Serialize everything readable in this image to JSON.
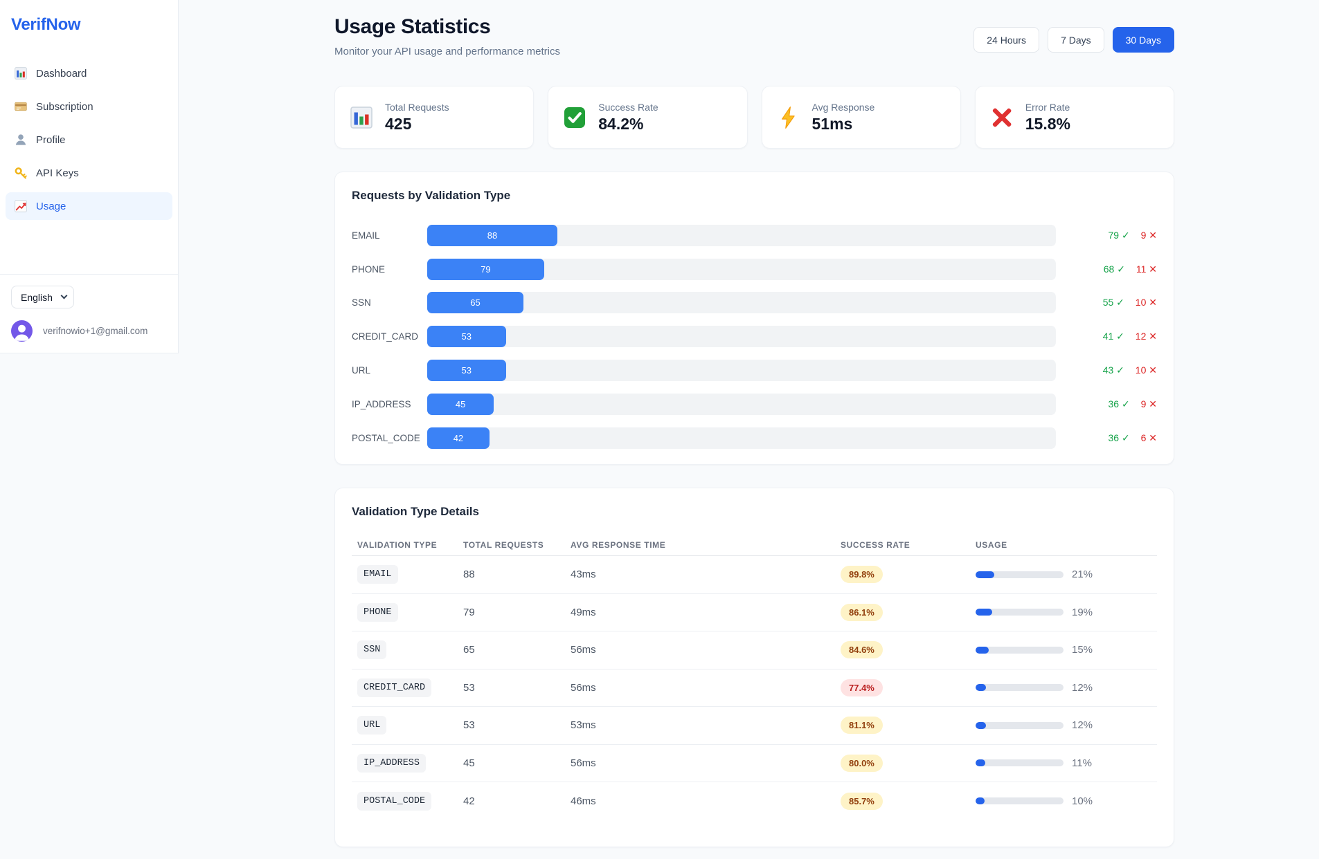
{
  "sidebar": {
    "logo": "VerifNow",
    "nav": [
      {
        "label": "Dashboard",
        "icon": "bar-chart-icon",
        "active": false
      },
      {
        "label": "Subscription",
        "icon": "credit-card-icon",
        "active": false
      },
      {
        "label": "Profile",
        "icon": "person-icon",
        "active": false
      },
      {
        "label": "API Keys",
        "icon": "key-icon",
        "active": false
      },
      {
        "label": "Usage",
        "icon": "chart-up-icon",
        "active": true
      }
    ],
    "language_selector": {
      "value": "English"
    },
    "user": {
      "email": "verifnowio+1@gmail.com"
    }
  },
  "header": {
    "title": "Usage Statistics",
    "subtitle": "Monitor your API usage and performance metrics",
    "range_buttons": [
      {
        "label": "24 Hours",
        "active": false
      },
      {
        "label": "7 Days",
        "active": false
      },
      {
        "label": "30 Days",
        "active": true
      }
    ]
  },
  "stat_cards": [
    {
      "label": "Total Requests",
      "value": "425",
      "icon": "bar-chart-icon"
    },
    {
      "label": "Success Rate",
      "value": "84.2%",
      "icon": "check-icon"
    },
    {
      "label": "Avg Response",
      "value": "51ms",
      "icon": "lightning-icon"
    },
    {
      "label": "Error Rate",
      "value": "15.8%",
      "icon": "cross-icon"
    }
  ],
  "chart_data": {
    "type": "bar",
    "orientation": "horizontal",
    "title": "Requests by Validation Type",
    "categories": [
      "EMAIL",
      "PHONE",
      "SSN",
      "CREDIT_CARD",
      "URL",
      "IP_ADDRESS",
      "POSTAL_CODE"
    ],
    "values": [
      88,
      79,
      65,
      53,
      53,
      45,
      42
    ],
    "series": [
      {
        "name": "success_count",
        "values": [
          79,
          68,
          55,
          41,
          43,
          36,
          36
        ]
      },
      {
        "name": "error_count",
        "values": [
          9,
          11,
          10,
          12,
          10,
          9,
          6
        ]
      }
    ],
    "total_requests": 425,
    "bar_color": "#3b82f6",
    "track_color": "#f1f3f5",
    "rows": [
      {
        "label": "EMAIL",
        "value": 88,
        "success": 79,
        "error": 9,
        "width_pct": 20.7
      },
      {
        "label": "PHONE",
        "value": 79,
        "success": 68,
        "error": 11,
        "width_pct": 18.6
      },
      {
        "label": "SSN",
        "value": 65,
        "success": 55,
        "error": 10,
        "width_pct": 15.3
      },
      {
        "label": "CREDIT_CARD",
        "value": 53,
        "success": 41,
        "error": 12,
        "width_pct": 12.5
      },
      {
        "label": "URL",
        "value": 53,
        "success": 43,
        "error": 10,
        "width_pct": 12.5
      },
      {
        "label": "IP_ADDRESS",
        "value": 45,
        "success": 36,
        "error": 9,
        "width_pct": 10.6
      },
      {
        "label": "POSTAL_CODE",
        "value": 42,
        "success": 36,
        "error": 6,
        "width_pct": 9.9
      }
    ]
  },
  "details_table": {
    "title": "Validation Type Details",
    "columns": [
      "VALIDATION TYPE",
      "TOTAL REQUESTS",
      "AVG RESPONSE TIME",
      "SUCCESS RATE",
      "USAGE"
    ],
    "rows": [
      {
        "type": "EMAIL",
        "total": "88",
        "avg": "43ms",
        "rate": "89.8%",
        "rate_level": "warn",
        "usage": "21%",
        "usage_pct": 21
      },
      {
        "type": "PHONE",
        "total": "79",
        "avg": "49ms",
        "rate": "86.1%",
        "rate_level": "warn",
        "usage": "19%",
        "usage_pct": 19
      },
      {
        "type": "SSN",
        "total": "65",
        "avg": "56ms",
        "rate": "84.6%",
        "rate_level": "warn",
        "usage": "15%",
        "usage_pct": 15
      },
      {
        "type": "CREDIT_CARD",
        "total": "53",
        "avg": "56ms",
        "rate": "77.4%",
        "rate_level": "bad",
        "usage": "12%",
        "usage_pct": 12
      },
      {
        "type": "URL",
        "total": "53",
        "avg": "53ms",
        "rate": "81.1%",
        "rate_level": "warn",
        "usage": "12%",
        "usage_pct": 12
      },
      {
        "type": "IP_ADDRESS",
        "total": "45",
        "avg": "56ms",
        "rate": "80.0%",
        "rate_level": "warn",
        "usage": "11%",
        "usage_pct": 11
      },
      {
        "type": "POSTAL_CODE",
        "total": "42",
        "avg": "46ms",
        "rate": "85.7%",
        "rate_level": "warn",
        "usage": "10%",
        "usage_pct": 10
      }
    ]
  },
  "glyphs": {
    "check": "✓",
    "cross": "✕"
  },
  "colors": {
    "primary_blue": "#2563eb",
    "bar_blue": "#3b82f6",
    "success_green": "#16a34a",
    "error_red": "#dc2626",
    "badge_yellow_bg": "#fef3c7",
    "badge_yellow_text": "#92400e",
    "badge_red_bg": "#fee2e2",
    "badge_red_text": "#b91c1c",
    "avatar_purple": "#7358e8",
    "page_bg": "#f8fafc"
  }
}
